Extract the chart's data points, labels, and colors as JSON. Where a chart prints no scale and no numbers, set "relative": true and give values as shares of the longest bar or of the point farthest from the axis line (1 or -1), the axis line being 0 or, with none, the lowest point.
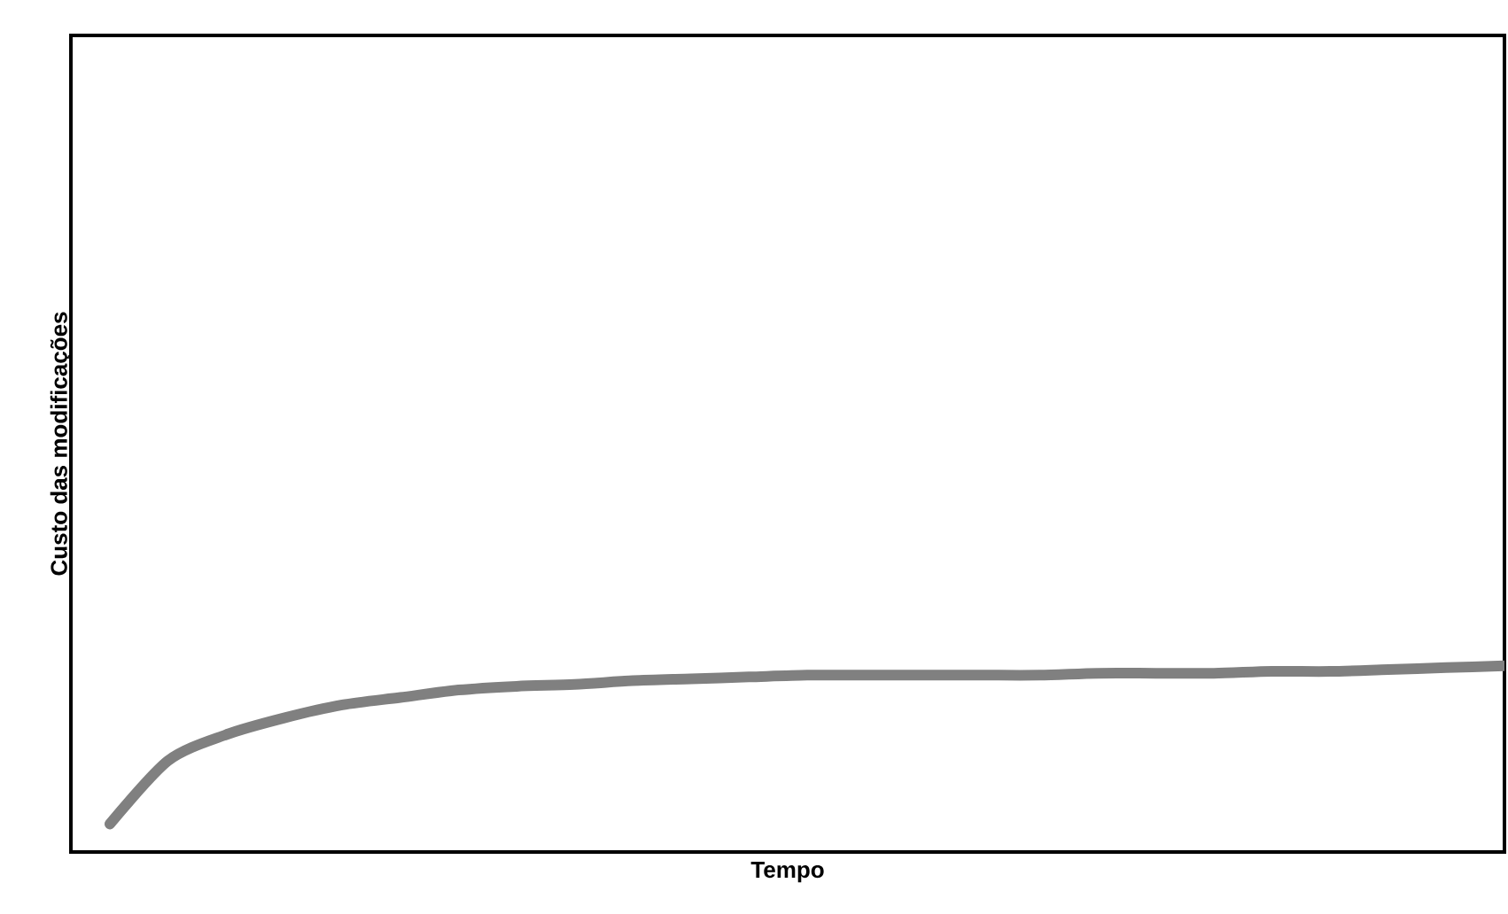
{
  "chart_data": {
    "type": "line",
    "relative": true,
    "xlabel": "Tempo",
    "ylabel": "Custo das modificações",
    "categories": [
      null,
      null,
      null,
      null,
      null,
      null,
      null,
      null,
      null,
      null,
      null,
      null,
      null,
      null,
      null,
      null,
      null,
      null,
      null,
      null,
      null,
      null,
      null,
      null,
      null
    ],
    "series": [
      {
        "color": "#808080",
        "values": [
          0.15,
          0.49,
          0.63,
          0.72,
          0.79,
          0.83,
          0.87,
          0.89,
          0.9,
          0.92,
          0.93,
          0.94,
          0.95,
          0.95,
          0.95,
          0.95,
          0.95,
          0.96,
          0.96,
          0.96,
          0.97,
          0.97,
          0.98,
          0.99,
          1.0
        ]
      }
    ]
  }
}
